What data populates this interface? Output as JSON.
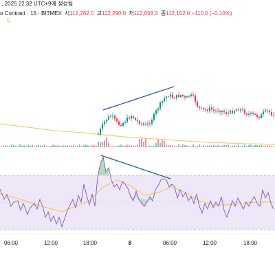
{
  "header": {
    "line1": "., 2025 22:32 UTC+9에 생성됨",
    "title": "o Contract · 15 · BITMEX",
    "ohlc": [
      {
        "label": "시",
        "value": "112,262.0"
      },
      {
        "label": "고",
        "value": "112,290.0"
      },
      {
        "label": "저",
        "value": "112,058.0"
      },
      {
        "label": "종",
        "value": "112,152.0"
      }
    ],
    "change": "−110.0 (−0.10%)",
    "indicator_fragment": "5"
  },
  "colors": {
    "up": "#089981",
    "down": "#f23645",
    "trendline": "#2a4ea8",
    "ma": "#f5c25a",
    "rsi_line": "#7e57c2",
    "rsi_ma": "#f5c542",
    "rsi_band": "#eee7f8",
    "rsi_fill_up": "#9fd4a8",
    "rsi_fill_down": "#d9cbe8"
  },
  "time_axis": {
    "ticks": [
      {
        "label": "06:00",
        "bold": false
      },
      {
        "label": "12:00",
        "bold": false
      },
      {
        "label": "18:00",
        "bold": false
      },
      {
        "label": "8",
        "bold": true
      },
      {
        "label": "06:00",
        "bold": false
      },
      {
        "label": "12:00",
        "bold": false
      },
      {
        "label": "18:00",
        "bold": false
      }
    ]
  },
  "annotations": {
    "price_divergence_line": "rising",
    "rsi_divergence_line": "falling"
  }
}
